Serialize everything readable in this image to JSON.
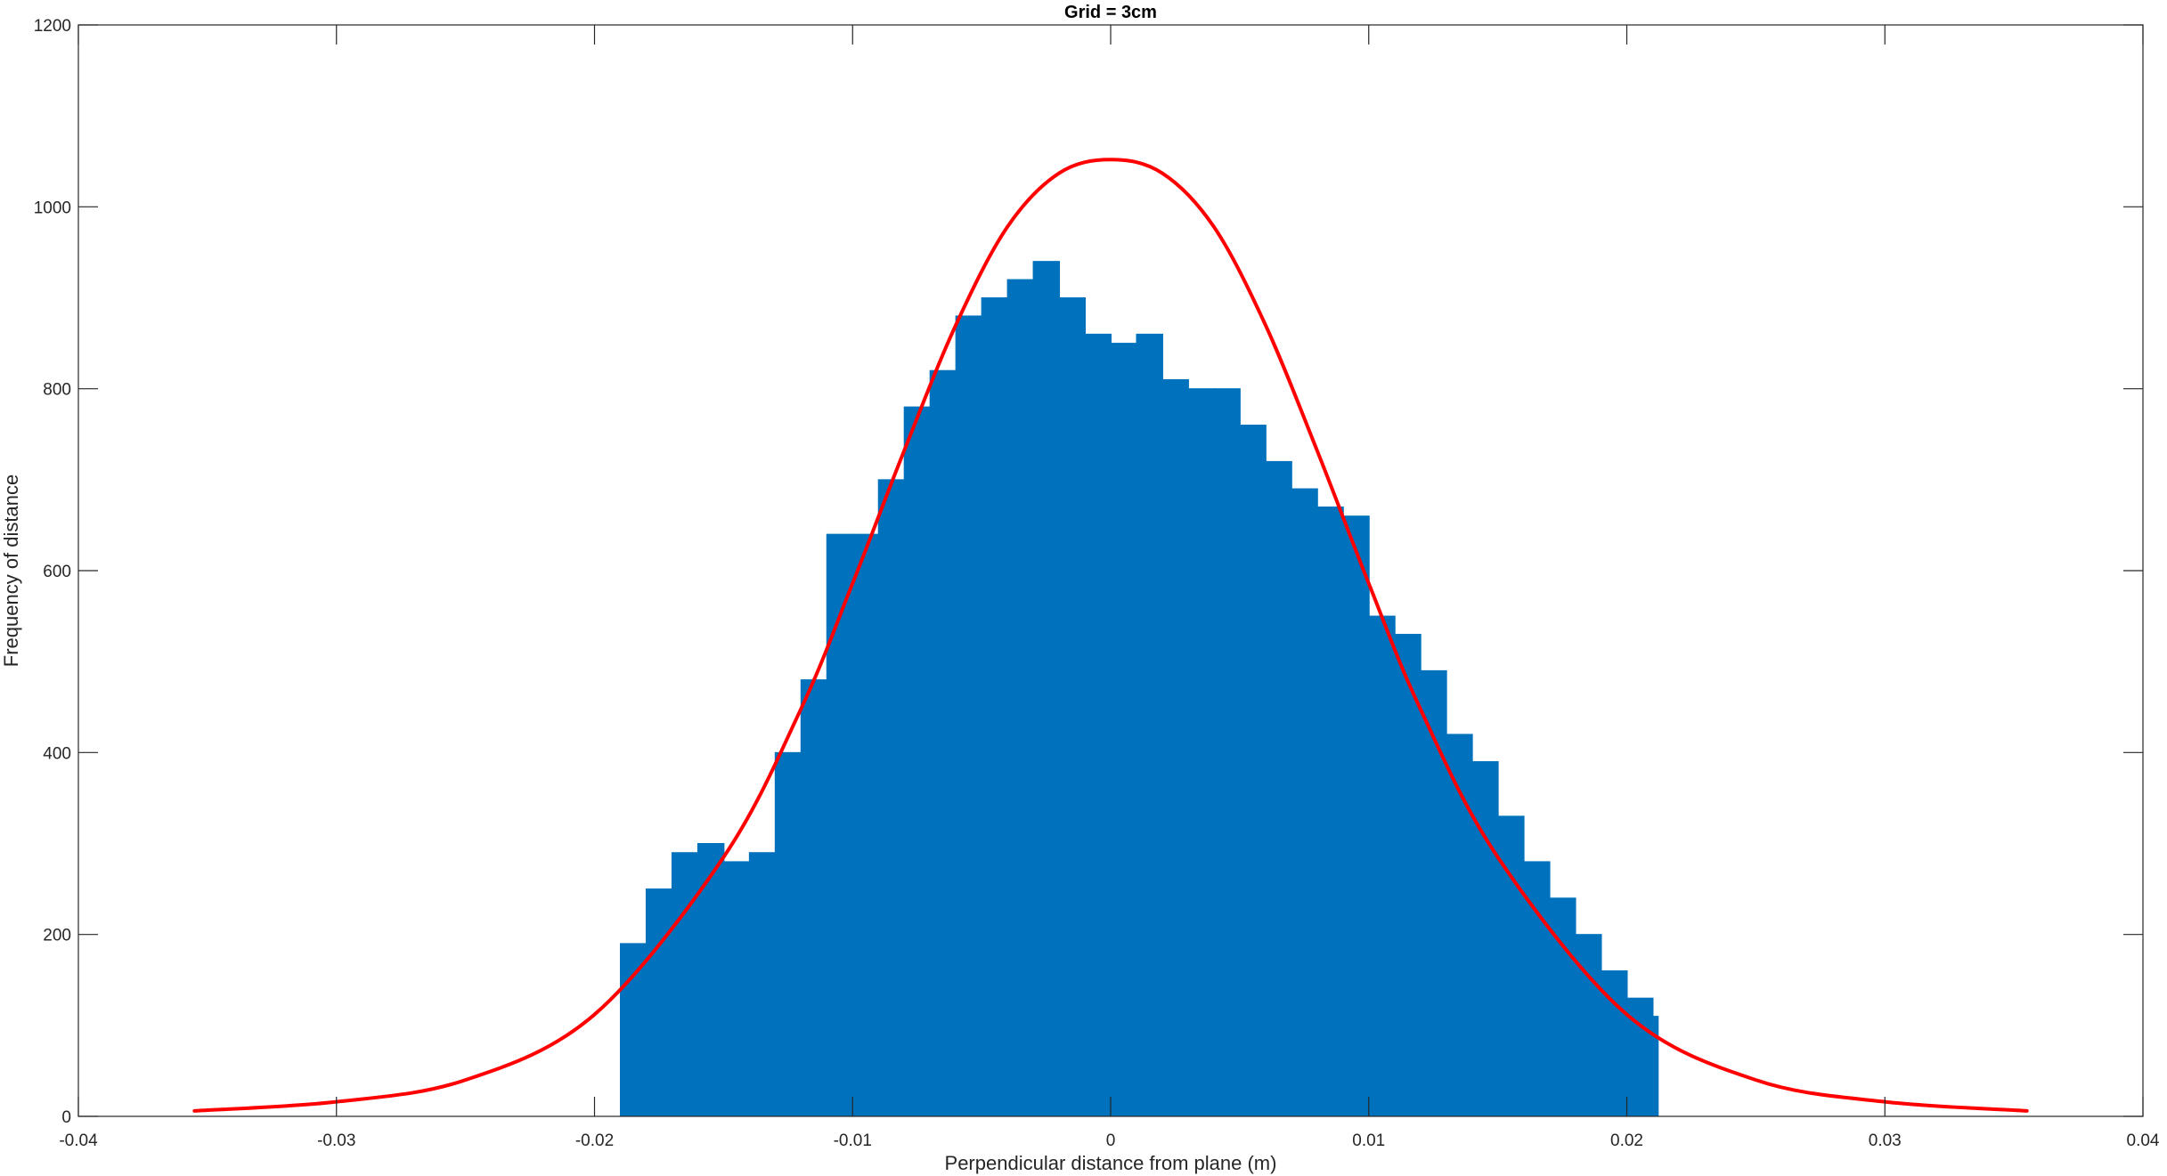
{
  "chart_data": {
    "type": "bar",
    "title": "Grid = 3cm",
    "xlabel": "Perpendicular distance from plane (m)",
    "ylabel": "Frequency of distance",
    "xlim": [
      -0.04,
      0.04
    ],
    "ylim": [
      0,
      1200
    ],
    "xticks": [
      -0.04,
      -0.03,
      -0.02,
      -0.01,
      0,
      0.01,
      0.02,
      0.03,
      0.04
    ],
    "xtick_labels": [
      "-0.04",
      "-0.03",
      "-0.02",
      "-0.01",
      "0",
      "0.01",
      "0.02",
      "0.03",
      "0.04"
    ],
    "yticks": [
      0,
      200,
      400,
      600,
      800,
      1000,
      1200
    ],
    "ytick_labels": [
      "0",
      "200",
      "400",
      "600",
      "800",
      "1000",
      "1200"
    ],
    "grid": false,
    "series": [
      {
        "type": "histogram",
        "color": "#0072BD",
        "x_range": [
          -0.019,
          0.0212
        ],
        "x": [
          -0.019,
          -0.018,
          -0.017,
          -0.016,
          -0.015,
          -0.014,
          -0.013,
          -0.012,
          -0.011,
          -0.01,
          -0.009,
          -0.008,
          -0.007,
          -0.006,
          -0.005,
          -0.004,
          -0.003,
          -0.002,
          -0.001,
          0,
          0.001,
          0.002,
          0.003,
          0.004,
          0.005,
          0.006,
          0.007,
          0.008,
          0.009,
          0.01,
          0.011,
          0.012,
          0.013,
          0.014,
          0.015,
          0.016,
          0.017,
          0.018,
          0.019,
          0.02,
          0.021
        ],
        "values": [
          190,
          250,
          290,
          300,
          280,
          290,
          400,
          480,
          640,
          640,
          700,
          780,
          820,
          880,
          900,
          920,
          940,
          900,
          860,
          850,
          860,
          810,
          800,
          800,
          760,
          720,
          690,
          670,
          660,
          550,
          530,
          490,
          420,
          390,
          330,
          280,
          240,
          200,
          160,
          130,
          110
        ]
      },
      {
        "type": "line",
        "color": "#FF0000",
        "x": [
          -0.0355,
          -0.03,
          -0.025,
          -0.02,
          -0.015,
          -0.012,
          -0.01,
          -0.008,
          -0.006,
          -0.004,
          -0.002,
          0,
          0.002,
          0.004,
          0.006,
          0.008,
          0.01,
          0.012,
          0.015,
          0.02,
          0.025,
          0.03,
          0.0355
        ],
        "values": [
          6,
          16,
          40,
          112,
          285,
          448,
          586,
          732,
          870,
          978,
          1037,
          1052,
          1037,
          978,
          870,
          732,
          586,
          448,
          285,
          112,
          40,
          16,
          6
        ]
      }
    ]
  }
}
